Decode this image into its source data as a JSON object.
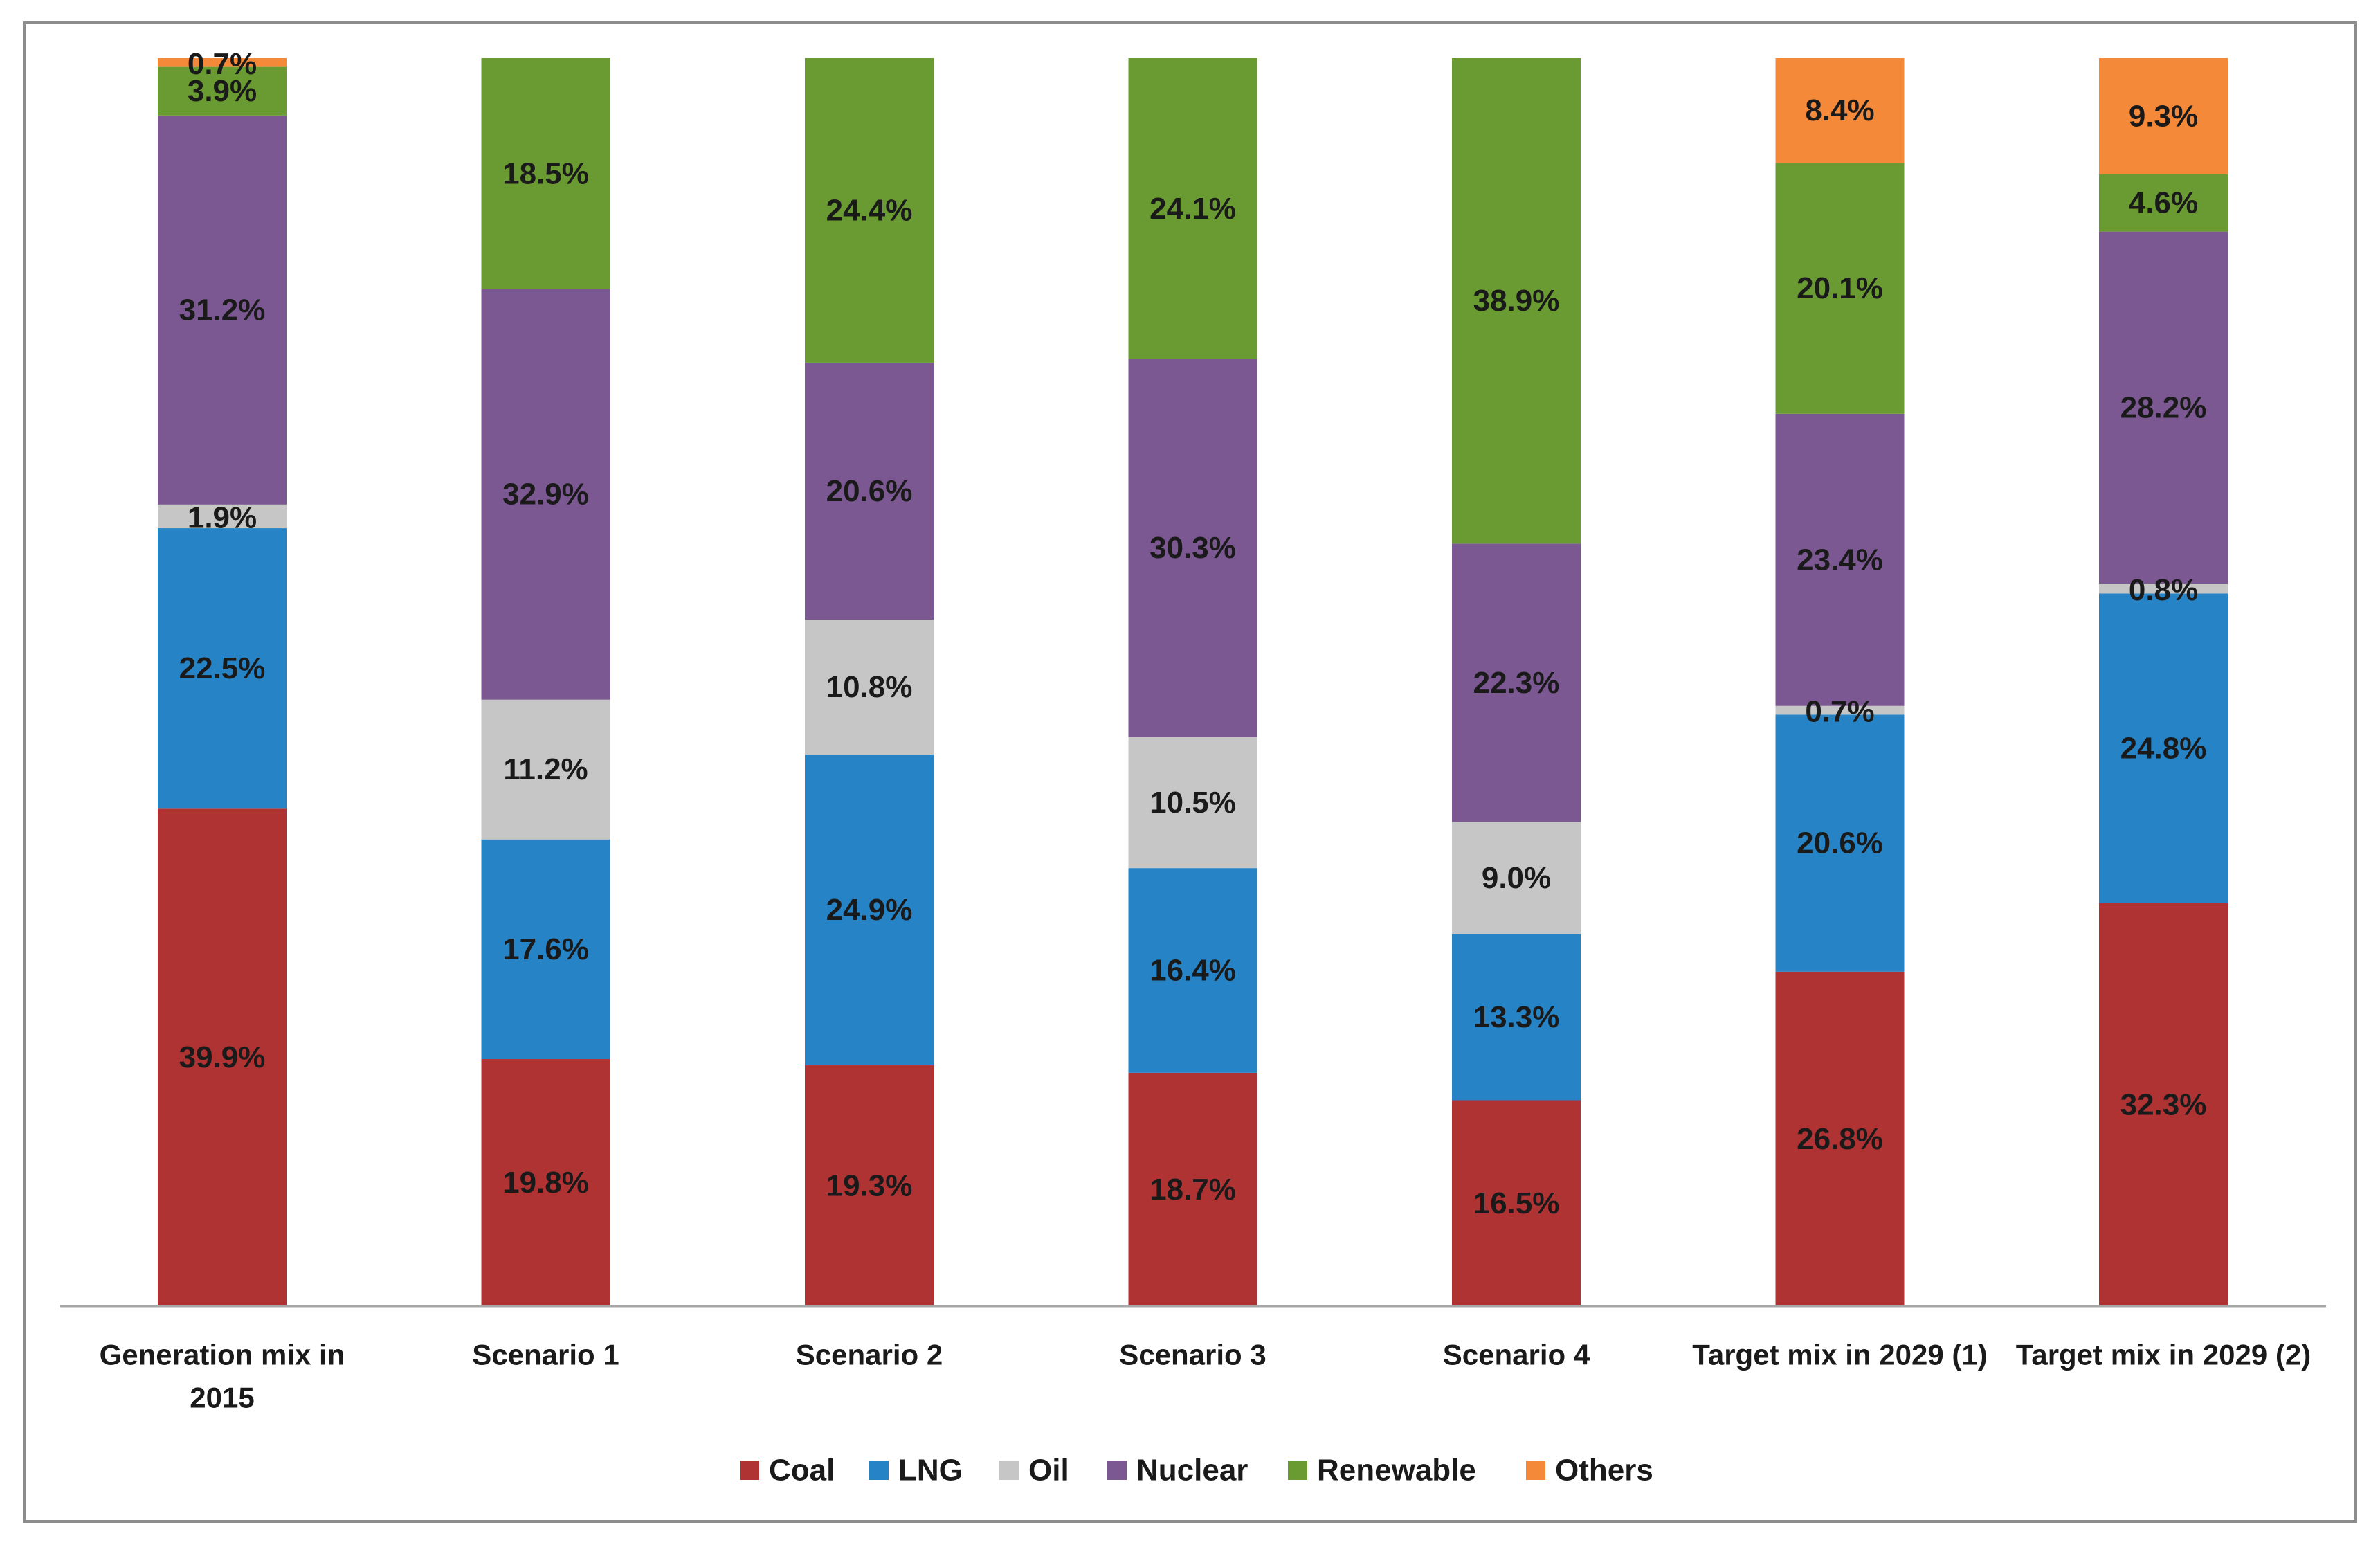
{
  "chart_data": {
    "type": "bar",
    "stacked": true,
    "percent": true,
    "categories": [
      [
        "Generation mix in",
        "2015"
      ],
      [
        "Scenario 1"
      ],
      [
        "Scenario 2"
      ],
      [
        "Scenario 3"
      ],
      [
        "Scenario 4"
      ],
      [
        "Target mix in 2029 (1)"
      ],
      [
        "Target mix in 2029 (2)"
      ]
    ],
    "series": [
      {
        "name": "Coal",
        "color": "#B03334",
        "values": [
          39.9,
          19.8,
          19.3,
          18.7,
          16.5,
          26.8,
          32.3
        ],
        "labels": [
          "39.9%",
          "19.8%",
          "19.3%",
          "18.7%",
          "16.5%",
          "26.8%",
          "32.3%"
        ]
      },
      {
        "name": "LNG",
        "color": "#2683C6",
        "values": [
          22.5,
          17.6,
          24.9,
          16.4,
          13.3,
          20.6,
          24.8
        ],
        "labels": [
          "22.5%",
          "17.6%",
          "24.9%",
          "16.4%",
          "13.3%",
          "20.6%",
          "24.8%"
        ]
      },
      {
        "name": "Oil",
        "color": "#C6C6C6",
        "values": [
          1.9,
          11.2,
          10.8,
          10.5,
          9.0,
          0.7,
          0.8
        ],
        "labels": [
          "1.9%",
          "11.2%",
          "10.8%",
          "10.5%",
          "9.0%",
          "0.7%",
          "0.8%"
        ]
      },
      {
        "name": "Nuclear",
        "color": "#7B5891",
        "values": [
          31.2,
          32.9,
          20.6,
          30.3,
          22.3,
          23.4,
          28.2
        ],
        "labels": [
          "31.2%",
          "32.9%",
          "20.6%",
          "30.3%",
          "22.3%",
          "23.4%",
          "28.2%"
        ]
      },
      {
        "name": "Renewable",
        "color": "#6A9A32",
        "values": [
          3.9,
          18.5,
          24.4,
          24.1,
          38.9,
          20.1,
          4.6
        ],
        "labels": [
          "3.9%",
          "18.5%",
          "24.4%",
          "24.1%",
          "38.9%",
          "20.1%",
          "4.6%"
        ]
      },
      {
        "name": "Others",
        "color": "#F5893A",
        "values": [
          0.7,
          0.0,
          0.0,
          0.0,
          0.0,
          8.4,
          9.3
        ],
        "labels": [
          "0.7%",
          "",
          "",
          "",
          "",
          "8.4%",
          "9.3%"
        ]
      }
    ],
    "legend_position": "bottom",
    "ylim": [
      0,
      100
    ],
    "grid": false,
    "xlabel": "",
    "ylabel": "",
    "title": ""
  }
}
